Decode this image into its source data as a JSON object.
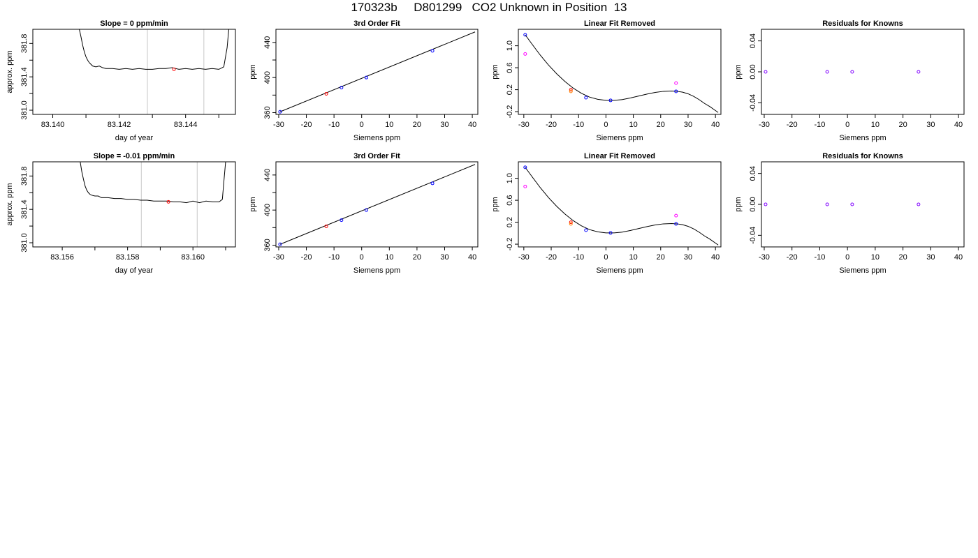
{
  "page": {
    "title": "170323b     D801299   CO2 Unknown in Position  13"
  },
  "colors": {
    "axis": "#000000",
    "curve": "#000000",
    "guide_line": "#c8c8c8",
    "known_point": "#0000ff",
    "sample_point": "#ff0000",
    "raw_point": "#ff00ff",
    "residual_point": "#8000ff",
    "unknown_point": "#ff8000"
  },
  "chart_data": [
    {
      "type": "line",
      "title": "Slope =  0  ppm/min",
      "xlabel": "day of year",
      "ylabel": "approx. ppm",
      "xlim": [
        83.1394,
        83.1455
      ],
      "ylim": [
        380.95,
        381.97
      ],
      "x_ticks": [
        83.14,
        83.141,
        83.142,
        83.143,
        83.144,
        83.145
      ],
      "x_tick_labels": [
        "83.140",
        "",
        "83.142",
        "",
        "83.144",
        ""
      ],
      "y_ticks": [
        381.0,
        381.2,
        381.4,
        381.6,
        381.8
      ],
      "y_tick_labels": [
        "381.0",
        "",
        "381.4",
        "",
        "381.8"
      ],
      "series": [
        {
          "x": [
            83.1408,
            83.14085,
            83.1409,
            83.14095,
            83.141,
            83.14105,
            83.1411,
            83.14115,
            83.1412,
            83.1413,
            83.1414,
            83.1415,
            83.1416,
            83.1418,
            83.142,
            83.1422,
            83.1424,
            83.1426,
            83.1428,
            83.143,
            83.1432,
            83.1434,
            83.1436,
            83.1438,
            83.144,
            83.1442,
            83.1444,
            83.1446,
            83.1448,
            83.145,
            83.1451,
            83.14515,
            83.14525,
            83.1453
          ],
          "y": [
            381.97,
            381.88,
            381.78,
            381.7,
            381.64,
            381.6,
            381.57,
            381.55,
            381.53,
            381.52,
            381.53,
            381.51,
            381.5,
            381.5,
            381.49,
            381.5,
            381.49,
            381.5,
            381.49,
            381.49,
            381.5,
            381.5,
            381.51,
            381.49,
            381.5,
            381.49,
            381.5,
            381.49,
            381.5,
            381.49,
            381.51,
            381.52,
            381.75,
            381.97
          ]
        }
      ],
      "vlines": [
        83.14285,
        83.14455
      ],
      "points": [
        {
          "x": 83.14365,
          "y": 381.49,
          "color": "sample_point"
        }
      ]
    },
    {
      "type": "scatter",
      "title": "3rd Order Fit",
      "xlabel": "Siemens ppm",
      "ylabel": "ppm",
      "xlim": [
        -31,
        42
      ],
      "ylim": [
        358,
        455
      ],
      "x_ticks": [
        -30,
        -20,
        -10,
        0,
        10,
        20,
        30,
        40
      ],
      "x_tick_labels": [
        "-30",
        "-20",
        "-10",
        "0",
        "10",
        "20",
        "30",
        "40"
      ],
      "y_ticks": [
        360,
        380,
        400,
        420,
        440
      ],
      "y_tick_labels": [
        "360",
        "",
        "400",
        "",
        "440"
      ],
      "curve": {
        "x": [
          -29.5,
          41
        ],
        "y": [
          361,
          452
        ]
      },
      "points": [
        {
          "x": -29.5,
          "y": 361,
          "color": "known_point"
        },
        {
          "x": -12.8,
          "y": 381.5,
          "color": "sample_point"
        },
        {
          "x": -7.3,
          "y": 388.5,
          "color": "known_point"
        },
        {
          "x": 1.7,
          "y": 400,
          "color": "known_point"
        },
        {
          "x": 25.6,
          "y": 430.5,
          "color": "known_point"
        }
      ]
    },
    {
      "type": "scatter",
      "title": "Linear Fit Removed",
      "xlabel": "Siemens ppm",
      "ylabel": "ppm",
      "xlim": [
        -32,
        42
      ],
      "ylim": [
        -0.25,
        1.3
      ],
      "x_ticks": [
        -30,
        -20,
        -10,
        0,
        10,
        20,
        30,
        40
      ],
      "x_tick_labels": [
        "-30",
        "-20",
        "-10",
        "0",
        "10",
        "20",
        "30",
        "40"
      ],
      "y_ticks": [
        -0.2,
        0.2,
        0.6,
        1.0
      ],
      "y_tick_labels": [
        "-0.2",
        "0.2",
        "0.6",
        "1.0"
      ],
      "curve": {
        "x": [
          -29.5,
          -27,
          -24,
          -21,
          -18,
          -15,
          -12,
          -9,
          -6,
          -3,
          0,
          3,
          6,
          9,
          12,
          15,
          18,
          21,
          24,
          26,
          28,
          30,
          32,
          34,
          36,
          38,
          40,
          41
        ],
        "y": [
          1.2,
          1.03,
          0.83,
          0.65,
          0.49,
          0.35,
          0.23,
          0.135,
          0.065,
          0.025,
          0.005,
          0.005,
          0.02,
          0.05,
          0.085,
          0.12,
          0.15,
          0.17,
          0.175,
          0.17,
          0.155,
          0.125,
          0.08,
          0.02,
          -0.05,
          -0.11,
          -0.18,
          -0.215
        ]
      },
      "points": [
        {
          "x": -29.5,
          "y": 1.2,
          "color": "known_point"
        },
        {
          "x": -29.5,
          "y": 0.85,
          "color": "raw_point"
        },
        {
          "x": -12.8,
          "y": 0.2,
          "color": "sample_point"
        },
        {
          "x": -12.8,
          "y": 0.17,
          "color": "unknown_point"
        },
        {
          "x": -7.3,
          "y": 0.055,
          "color": "known_point"
        },
        {
          "x": 1.7,
          "y": 0.005,
          "color": "known_point"
        },
        {
          "x": 25.6,
          "y": 0.17,
          "color": "known_point"
        },
        {
          "x": 25.6,
          "y": 0.32,
          "color": "raw_point"
        }
      ]
    },
    {
      "type": "scatter",
      "title": "Residuals for Knowns",
      "xlabel": "Siemens ppm",
      "ylabel": "ppm",
      "xlim": [
        -31,
        42
      ],
      "ylim": [
        -0.055,
        0.055
      ],
      "x_ticks": [
        -30,
        -20,
        -10,
        0,
        10,
        20,
        30,
        40
      ],
      "x_tick_labels": [
        "-30",
        "-20",
        "-10",
        "0",
        "10",
        "20",
        "30",
        "40"
      ],
      "y_ticks": [
        -0.04,
        0.0,
        0.04
      ],
      "y_tick_labels": [
        "-0.04",
        "0.00",
        "0.04"
      ],
      "points": [
        {
          "x": -29.5,
          "y": 0,
          "color": "residual_point"
        },
        {
          "x": -7.3,
          "y": 0,
          "color": "residual_point"
        },
        {
          "x": 1.7,
          "y": 0,
          "color": "residual_point"
        },
        {
          "x": 25.6,
          "y": 0,
          "color": "residual_point"
        }
      ]
    },
    {
      "type": "line",
      "title": "Slope =  -0.01  ppm/min",
      "xlabel": "day of year",
      "ylabel": "approx. ppm",
      "xlim": [
        83.1551,
        83.1613
      ],
      "ylim": [
        380.95,
        381.97
      ],
      "x_ticks": [
        83.156,
        83.157,
        83.158,
        83.159,
        83.16,
        83.161
      ],
      "x_tick_labels": [
        "83.156",
        "",
        "83.158",
        "",
        "83.160",
        ""
      ],
      "y_ticks": [
        381.0,
        381.2,
        381.4,
        381.6,
        381.8
      ],
      "y_tick_labels": [
        "381.0",
        "",
        "381.4",
        "",
        "381.8"
      ],
      "series": [
        {
          "x": [
            83.15655,
            83.1566,
            83.15665,
            83.1567,
            83.15675,
            83.1568,
            83.15685,
            83.1569,
            83.157,
            83.1571,
            83.1572,
            83.1574,
            83.1576,
            83.1578,
            83.158,
            83.1582,
            83.1584,
            83.1586,
            83.1588,
            83.159,
            83.1592,
            83.1594,
            83.1596,
            83.1598,
            83.16,
            83.1602,
            83.1604,
            83.1606,
            83.1608,
            83.1609,
            83.16095,
            83.161
          ],
          "y": [
            381.97,
            381.85,
            381.76,
            381.68,
            381.63,
            381.6,
            381.58,
            381.57,
            381.56,
            381.56,
            381.54,
            381.54,
            381.53,
            381.53,
            381.52,
            381.52,
            381.51,
            381.51,
            381.5,
            381.5,
            381.5,
            381.49,
            381.49,
            381.48,
            381.5,
            381.48,
            381.5,
            381.49,
            381.49,
            381.52,
            381.75,
            381.97
          ]
        }
      ],
      "vlines": [
        83.15842,
        83.16013
      ],
      "points": [
        {
          "x": 83.15925,
          "y": 381.49,
          "color": "sample_point"
        }
      ]
    },
    {
      "type": "scatter",
      "title": "3rd Order Fit",
      "xlabel": "Siemens ppm",
      "ylabel": "ppm",
      "xlim": [
        -31,
        42
      ],
      "ylim": [
        358,
        455
      ],
      "x_ticks": [
        -30,
        -20,
        -10,
        0,
        10,
        20,
        30,
        40
      ],
      "x_tick_labels": [
        "-30",
        "-20",
        "-10",
        "0",
        "10",
        "20",
        "30",
        "40"
      ],
      "y_ticks": [
        360,
        380,
        400,
        420,
        440
      ],
      "y_tick_labels": [
        "360",
        "",
        "400",
        "",
        "440"
      ],
      "curve": {
        "x": [
          -29.5,
          41
        ],
        "y": [
          361,
          452
        ]
      },
      "points": [
        {
          "x": -29.5,
          "y": 361,
          "color": "known_point"
        },
        {
          "x": -12.8,
          "y": 381.5,
          "color": "sample_point"
        },
        {
          "x": -7.3,
          "y": 388.5,
          "color": "known_point"
        },
        {
          "x": 1.7,
          "y": 400,
          "color": "known_point"
        },
        {
          "x": 25.6,
          "y": 430.5,
          "color": "known_point"
        }
      ]
    },
    {
      "type": "scatter",
      "title": "Linear Fit Removed",
      "xlabel": "Siemens ppm",
      "ylabel": "ppm",
      "xlim": [
        -32,
        42
      ],
      "ylim": [
        -0.25,
        1.3
      ],
      "x_ticks": [
        -30,
        -20,
        -10,
        0,
        10,
        20,
        30,
        40
      ],
      "x_tick_labels": [
        "-30",
        "-20",
        "-10",
        "0",
        "10",
        "20",
        "30",
        "40"
      ],
      "y_ticks": [
        -0.2,
        0.2,
        0.6,
        1.0
      ],
      "y_tick_labels": [
        "-0.2",
        "0.2",
        "0.6",
        "1.0"
      ],
      "curve": {
        "x": [
          -29.5,
          -27,
          -24,
          -21,
          -18,
          -15,
          -12,
          -9,
          -6,
          -3,
          0,
          3,
          6,
          9,
          12,
          15,
          18,
          21,
          24,
          26,
          28,
          30,
          32,
          34,
          36,
          38,
          40,
          41
        ],
        "y": [
          1.2,
          1.03,
          0.83,
          0.65,
          0.49,
          0.35,
          0.23,
          0.135,
          0.065,
          0.025,
          0.005,
          0.005,
          0.02,
          0.05,
          0.085,
          0.12,
          0.15,
          0.17,
          0.175,
          0.17,
          0.155,
          0.125,
          0.08,
          0.02,
          -0.05,
          -0.11,
          -0.18,
          -0.215
        ]
      },
      "points": [
        {
          "x": -29.5,
          "y": 1.2,
          "color": "known_point"
        },
        {
          "x": -29.5,
          "y": 0.85,
          "color": "raw_point"
        },
        {
          "x": -12.8,
          "y": 0.2,
          "color": "sample_point"
        },
        {
          "x": -12.8,
          "y": 0.17,
          "color": "unknown_point"
        },
        {
          "x": -7.3,
          "y": 0.055,
          "color": "known_point"
        },
        {
          "x": 1.7,
          "y": 0.005,
          "color": "known_point"
        },
        {
          "x": 25.6,
          "y": 0.17,
          "color": "known_point"
        },
        {
          "x": 25.6,
          "y": 0.32,
          "color": "raw_point"
        }
      ]
    },
    {
      "type": "scatter",
      "title": "Residuals for Knowns",
      "xlabel": "Siemens ppm",
      "ylabel": "ppm",
      "xlim": [
        -31,
        42
      ],
      "ylim": [
        -0.055,
        0.055
      ],
      "x_ticks": [
        -30,
        -20,
        -10,
        0,
        10,
        20,
        30,
        40
      ],
      "x_tick_labels": [
        "-30",
        "-20",
        "-10",
        "0",
        "10",
        "20",
        "30",
        "40"
      ],
      "y_ticks": [
        -0.04,
        0.0,
        0.04
      ],
      "y_tick_labels": [
        "-0.04",
        "0.00",
        "0.04"
      ],
      "points": [
        {
          "x": -29.5,
          "y": 0,
          "color": "residual_point"
        },
        {
          "x": -7.3,
          "y": 0,
          "color": "residual_point"
        },
        {
          "x": 1.7,
          "y": 0,
          "color": "residual_point"
        },
        {
          "x": 25.6,
          "y": 0,
          "color": "residual_point"
        }
      ]
    }
  ]
}
